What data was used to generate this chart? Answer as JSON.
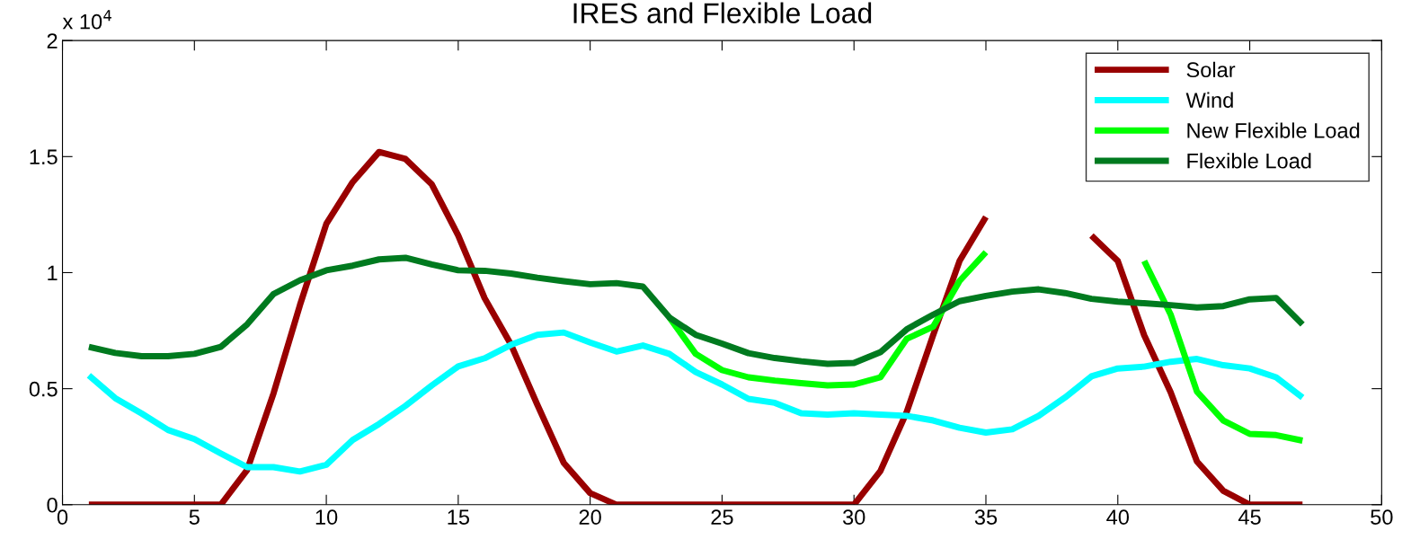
{
  "chart_data": {
    "type": "line",
    "title": "IRES and Flexible Load",
    "annotations": [
      "x 10$^{4}$"
    ],
    "x": [
      1,
      2,
      3,
      4,
      5,
      6,
      7,
      8,
      9,
      10,
      11,
      12,
      13,
      14,
      15,
      16,
      17,
      18,
      19,
      20,
      21,
      22,
      23,
      24,
      25,
      26,
      27,
      28,
      29,
      30,
      31,
      32,
      33,
      34,
      35,
      36,
      37,
      38,
      39,
      40,
      41,
      42,
      43,
      44,
      45,
      46,
      47
    ],
    "series": [
      {
        "name": "Solar",
        "color": "#990000",
        "values": [
          0,
          0,
          0,
          0,
          0,
          0,
          0.15,
          0.48,
          0.86,
          1.21,
          1.39,
          1.52,
          1.49,
          1.38,
          1.16,
          0.89,
          0.69,
          0.43,
          0.18,
          0.05,
          0,
          0,
          0,
          0,
          0,
          0,
          0,
          0,
          0,
          0,
          0.145,
          0.4,
          0.73,
          1.05,
          1.24,
          null,
          null,
          null,
          1.16,
          1.05,
          0.73,
          0.485,
          0.186,
          0.06,
          0,
          0,
          0
        ]
      },
      {
        "name": "Wind",
        "color": "#00ffff",
        "values": [
          0.557,
          0.459,
          0.393,
          0.322,
          0.283,
          0.221,
          0.162,
          0.162,
          0.143,
          0.172,
          0.279,
          0.348,
          0.426,
          0.514,
          0.596,
          0.631,
          0.689,
          0.732,
          0.742,
          0.699,
          0.66,
          0.686,
          0.65,
          0.572,
          0.518,
          0.456,
          0.439,
          0.394,
          0.388,
          0.394,
          0.388,
          0.383,
          0.363,
          0.332,
          0.311,
          0.325,
          0.383,
          0.462,
          0.553,
          0.587,
          0.595,
          0.616,
          0.628,
          0.601,
          0.587,
          0.549,
          0.462
        ]
      },
      {
        "name": "New Flexible Load",
        "color": "#00ff00",
        "values": [
          null,
          null,
          null,
          null,
          null,
          null,
          null,
          null,
          null,
          null,
          null,
          null,
          null,
          null,
          null,
          null,
          null,
          null,
          null,
          null,
          null,
          null,
          0.807,
          0.65,
          0.58,
          0.549,
          0.535,
          0.524,
          0.514,
          0.518,
          0.549,
          0.715,
          0.767,
          0.964,
          1.088,
          null,
          null,
          null,
          null,
          null,
          1.05,
          0.82,
          0.487,
          0.363,
          0.305,
          0.3,
          0.276
        ]
      },
      {
        "name": "Flexible Load",
        "color": "#007a1f",
        "values": [
          0.68,
          0.654,
          0.64,
          0.64,
          0.65,
          0.68,
          0.777,
          0.908,
          0.967,
          1.01,
          1.03,
          1.057,
          1.064,
          1.035,
          1.01,
          1.008,
          0.996,
          0.978,
          0.963,
          0.95,
          0.955,
          0.94,
          0.807,
          0.732,
          0.694,
          0.653,
          0.632,
          0.618,
          0.607,
          0.611,
          0.657,
          0.756,
          0.819,
          0.877,
          0.9,
          0.918,
          0.928,
          0.912,
          0.887,
          0.875,
          0.868,
          0.86,
          0.85,
          0.856,
          0.885,
          0.891,
          0.777
        ]
      }
    ],
    "xlim": [
      0,
      50
    ],
    "xticks": [
      0,
      5,
      10,
      15,
      20,
      25,
      30,
      35,
      40,
      45,
      50
    ],
    "ylim": [
      0,
      2
    ],
    "yticks": [
      0,
      0.5,
      1,
      1.5,
      2
    ],
    "grid": false,
    "legend": "top right",
    "line_style": "solid",
    "marker": "none"
  }
}
